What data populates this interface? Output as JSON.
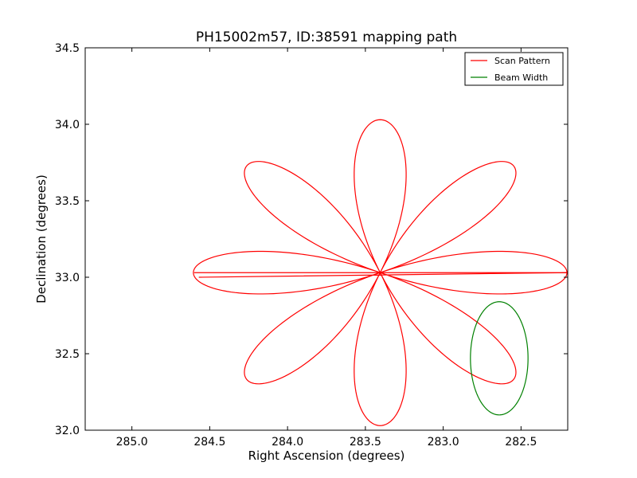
{
  "chart_data": {
    "type": "line",
    "title": "PH15002m57, ID:38591 mapping path",
    "xlabel": "Right Ascension (degrees)",
    "ylabel": "Declination (degrees)",
    "xlim": [
      285.3,
      282.2
    ],
    "ylim": [
      32.0,
      34.5
    ],
    "x_inverted": true,
    "xticks": [
      285.0,
      284.5,
      284.0,
      283.5,
      283.0,
      282.5
    ],
    "xtick_labels": [
      "285.0",
      "284.5",
      "284.0",
      "283.5",
      "283.0",
      "282.5"
    ],
    "yticks": [
      32.0,
      32.5,
      33.0,
      33.5,
      34.0,
      34.5
    ],
    "ytick_labels": [
      "32.0",
      "32.5",
      "33.0",
      "33.5",
      "34.0",
      "34.5"
    ],
    "grid": false,
    "legend_position": "top-right",
    "series": [
      {
        "name": "Scan Pattern",
        "color": "#ff0000",
        "kind": "rose",
        "center": [
          283.405,
          33.03
        ],
        "petals": 8,
        "petal_length_ra": 1.2,
        "petal_length_dec": 1.0,
        "start": [
          284.6,
          33.03
        ],
        "end": [
          284.57,
          33.0
        ]
      },
      {
        "name": "Beam Width",
        "color": "#008000",
        "kind": "circle",
        "center": [
          282.64,
          32.47
        ],
        "radius_ra": 0.185,
        "radius_dec": 0.37
      }
    ]
  }
}
